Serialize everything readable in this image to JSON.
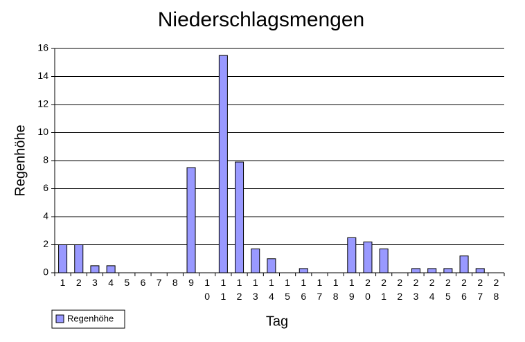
{
  "chart_data": {
    "type": "bar",
    "title": "Niederschlagsmengen",
    "x_label": "Tag",
    "y_label": "Regenhöhe",
    "categories": [
      "1",
      "2",
      "3",
      "4",
      "5",
      "6",
      "7",
      "8",
      "9",
      "10",
      "11",
      "12",
      "13",
      "14",
      "15",
      "16",
      "17",
      "18",
      "19",
      "20",
      "21",
      "22",
      "23",
      "24",
      "25",
      "26",
      "27",
      "28"
    ],
    "series": [
      {
        "name": "Regenhöhe",
        "color": "#9999ff",
        "values": [
          2,
          2,
          0.5,
          0.5,
          0,
          0,
          0,
          0,
          7.5,
          0,
          15.5,
          7.9,
          1.7,
          1,
          0,
          0.3,
          0,
          0,
          2.5,
          2.2,
          1.7,
          0,
          0.3,
          0.3,
          0.3,
          1.2,
          0.3,
          0
        ]
      }
    ],
    "ylim": [
      0,
      16
    ],
    "yticks": [
      0,
      2,
      4,
      6,
      8,
      10,
      12,
      14,
      16
    ],
    "grid": true,
    "legend": "bottom-left"
  }
}
